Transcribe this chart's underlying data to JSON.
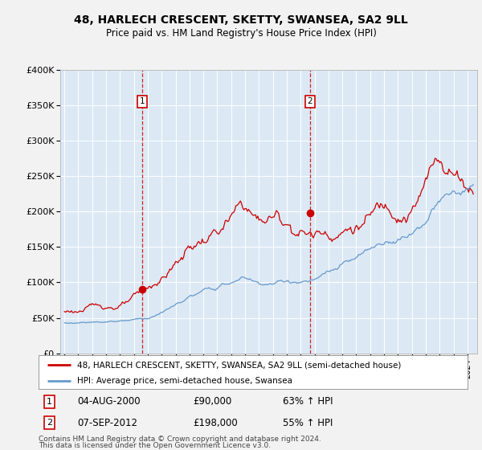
{
  "title": "48, HARLECH CRESCENT, SKETTY, SWANSEA, SA2 9LL",
  "subtitle": "Price paid vs. HM Land Registry's House Price Index (HPI)",
  "legend_line1": "48, HARLECH CRESCENT, SKETTY, SWANSEA, SA2 9LL (semi-detached house)",
  "legend_line2": "HPI: Average price, semi-detached house, Swansea",
  "footnote_line1": "Contains HM Land Registry data © Crown copyright and database right 2024.",
  "footnote_line2": "This data is licensed under the Open Government Licence v3.0.",
  "transaction1_date": 2000.583,
  "transaction1_price": 90000,
  "transaction2_date": 2012.667,
  "transaction2_price": 198000,
  "ylim_max": 400000,
  "yticks": [
    0,
    50000,
    100000,
    150000,
    200000,
    250000,
    300000,
    350000,
    400000
  ],
  "background_color": "#dce9f5",
  "fig_bg_color": "#f2f2f2",
  "red_line_color": "#cc0000",
  "blue_line_color": "#6699cc",
  "grid_color": "#ffffff",
  "vline_color": "#cc0000",
  "box_edge_color": "#cc0000"
}
